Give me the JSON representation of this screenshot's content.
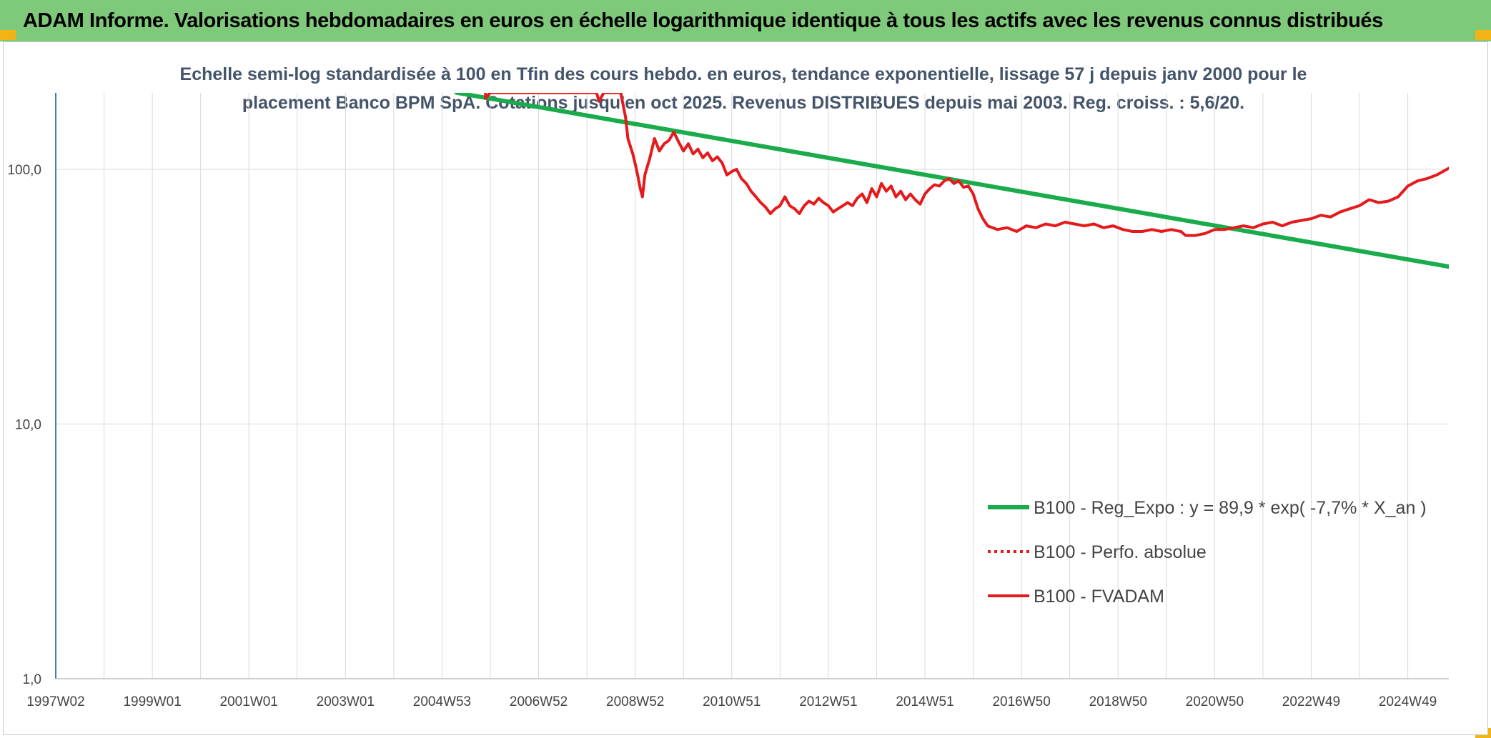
{
  "banner": {
    "title": "ADAM Informe. Valorisations hebdomadaires en euros en échelle logarithmique identique à tous les actifs avec les revenus connus distribués"
  },
  "colors": {
    "banner_bg": "#7fc97a",
    "trend": "#1aab4b",
    "series": "#e41a1c",
    "grid": "#d9d9d9",
    "axis": "#4a7ab5"
  },
  "chart_data": {
    "type": "line",
    "title_lines": [
      "Echelle semi-log standardisée à 100 en Tfin des cours hebdo. en euros, tendance exponentielle, lissage 57 j depuis janv 2000 pour le",
      "placement Banco BPM SpA. Cotations jusqu'en oct 2025. Revenus DISTRIBUES depuis mai 2003. Reg. croiss. : 5,6/20."
    ],
    "y_scale": "log",
    "ylim": [
      1,
      200
    ],
    "xlim": [
      1997.0,
      2025.85
    ],
    "y_ticks": [
      {
        "value": 1,
        "label": "1,0"
      },
      {
        "value": 10,
        "label": "10,0"
      },
      {
        "value": 100,
        "label": "100,0"
      }
    ],
    "x_ticks": [
      {
        "value": 1997.0,
        "label": "1997W02"
      },
      {
        "value": 1999.0,
        "label": "1999W01"
      },
      {
        "value": 2001.0,
        "label": "2001W01"
      },
      {
        "value": 2003.0,
        "label": "2003W01"
      },
      {
        "value": 2005.0,
        "label": "2004W53"
      },
      {
        "value": 2007.0,
        "label": "2006W52"
      },
      {
        "value": 2009.0,
        "label": "2008W52"
      },
      {
        "value": 2011.0,
        "label": "2010W51"
      },
      {
        "value": 2013.0,
        "label": "2012W51"
      },
      {
        "value": 2015.0,
        "label": "2014W51"
      },
      {
        "value": 2017.0,
        "label": "2016W50"
      },
      {
        "value": 2019.0,
        "label": "2018W50"
      },
      {
        "value": 2021.0,
        "label": "2020W50"
      },
      {
        "value": 2023.0,
        "label": "2022W49"
      },
      {
        "value": 2025.0,
        "label": "2024W49"
      }
    ],
    "gridlines": true,
    "legend_position": "bottom-right",
    "series": [
      {
        "name": "B100 - Reg_Expo : y = 89,9 * exp( -7,7% *  X_an )",
        "style": "solid-green",
        "points": [
          [
            2005.3,
            200
          ],
          [
            2025.85,
            41.5
          ]
        ]
      },
      {
        "name": "B100 - Perfo. absolue",
        "style": "dotted-red",
        "points": []
      },
      {
        "name": "B100 - FVADAM",
        "style": "solid-red",
        "points": [
          [
            2005.9,
            200
          ],
          [
            2005.9,
            190
          ],
          [
            2006.0,
            200
          ],
          [
            2008.2,
            200
          ],
          [
            2008.25,
            185
          ],
          [
            2008.35,
            200
          ],
          [
            2008.7,
            200
          ],
          [
            2008.8,
            160
          ],
          [
            2008.85,
            132
          ],
          [
            2008.95,
            115
          ],
          [
            2009.0,
            105
          ],
          [
            2009.05,
            95
          ],
          [
            2009.1,
            85
          ],
          [
            2009.15,
            78
          ],
          [
            2009.2,
            95
          ],
          [
            2009.3,
            110
          ],
          [
            2009.4,
            132
          ],
          [
            2009.5,
            118
          ],
          [
            2009.6,
            126
          ],
          [
            2009.7,
            130
          ],
          [
            2009.8,
            140
          ],
          [
            2009.9,
            128
          ],
          [
            2010.0,
            118
          ],
          [
            2010.1,
            126
          ],
          [
            2010.2,
            115
          ],
          [
            2010.3,
            120
          ],
          [
            2010.4,
            111
          ],
          [
            2010.5,
            116
          ],
          [
            2010.6,
            108
          ],
          [
            2010.7,
            112
          ],
          [
            2010.8,
            106
          ],
          [
            2010.9,
            95
          ],
          [
            2011.0,
            98
          ],
          [
            2011.1,
            100
          ],
          [
            2011.2,
            92
          ],
          [
            2011.3,
            88
          ],
          [
            2011.4,
            82
          ],
          [
            2011.5,
            78
          ],
          [
            2011.6,
            74
          ],
          [
            2011.7,
            71
          ],
          [
            2011.8,
            67
          ],
          [
            2011.9,
            70
          ],
          [
            2012.0,
            72
          ],
          [
            2012.1,
            78
          ],
          [
            2012.2,
            72
          ],
          [
            2012.3,
            70
          ],
          [
            2012.4,
            67
          ],
          [
            2012.5,
            72
          ],
          [
            2012.6,
            75
          ],
          [
            2012.7,
            73
          ],
          [
            2012.8,
            77
          ],
          [
            2012.9,
            74
          ],
          [
            2013.0,
            72
          ],
          [
            2013.1,
            68
          ],
          [
            2013.2,
            70
          ],
          [
            2013.3,
            72
          ],
          [
            2013.4,
            74
          ],
          [
            2013.5,
            72
          ],
          [
            2013.6,
            77
          ],
          [
            2013.7,
            80
          ],
          [
            2013.8,
            74
          ],
          [
            2013.9,
            84
          ],
          [
            2014.0,
            78
          ],
          [
            2014.1,
            88
          ],
          [
            2014.2,
            82
          ],
          [
            2014.3,
            86
          ],
          [
            2014.4,
            78
          ],
          [
            2014.5,
            82
          ],
          [
            2014.6,
            76
          ],
          [
            2014.7,
            80
          ],
          [
            2014.8,
            76
          ],
          [
            2014.9,
            73
          ],
          [
            2015.0,
            80
          ],
          [
            2015.1,
            84
          ],
          [
            2015.2,
            87
          ],
          [
            2015.3,
            86
          ],
          [
            2015.4,
            90
          ],
          [
            2015.5,
            92
          ],
          [
            2015.6,
            88
          ],
          [
            2015.7,
            90
          ],
          [
            2015.8,
            85
          ],
          [
            2015.9,
            86
          ],
          [
            2016.0,
            80
          ],
          [
            2016.1,
            70
          ],
          [
            2016.2,
            64
          ],
          [
            2016.3,
            60
          ],
          [
            2016.5,
            58
          ],
          [
            2016.7,
            59
          ],
          [
            2016.9,
            57
          ],
          [
            2017.1,
            60
          ],
          [
            2017.3,
            59
          ],
          [
            2017.5,
            61
          ],
          [
            2017.7,
            60
          ],
          [
            2017.9,
            62
          ],
          [
            2018.1,
            61
          ],
          [
            2018.3,
            60
          ],
          [
            2018.5,
            61
          ],
          [
            2018.7,
            59
          ],
          [
            2018.9,
            60
          ],
          [
            2019.1,
            58
          ],
          [
            2019.3,
            57
          ],
          [
            2019.5,
            57
          ],
          [
            2019.7,
            58
          ],
          [
            2019.9,
            57
          ],
          [
            2020.1,
            58
          ],
          [
            2020.3,
            57
          ],
          [
            2020.4,
            55
          ],
          [
            2020.6,
            55
          ],
          [
            2020.8,
            56
          ],
          [
            2021.0,
            58
          ],
          [
            2021.2,
            58
          ],
          [
            2021.4,
            59
          ],
          [
            2021.6,
            60
          ],
          [
            2021.8,
            59
          ],
          [
            2022.0,
            61
          ],
          [
            2022.2,
            62
          ],
          [
            2022.4,
            60
          ],
          [
            2022.6,
            62
          ],
          [
            2022.8,
            63
          ],
          [
            2023.0,
            64
          ],
          [
            2023.2,
            66
          ],
          [
            2023.4,
            65
          ],
          [
            2023.6,
            68
          ],
          [
            2023.8,
            70
          ],
          [
            2024.0,
            72
          ],
          [
            2024.2,
            76
          ],
          [
            2024.4,
            74
          ],
          [
            2024.6,
            75
          ],
          [
            2024.8,
            78
          ],
          [
            2025.0,
            86
          ],
          [
            2025.2,
            90
          ],
          [
            2025.4,
            92
          ],
          [
            2025.6,
            95
          ],
          [
            2025.85,
            101
          ]
        ]
      }
    ]
  }
}
